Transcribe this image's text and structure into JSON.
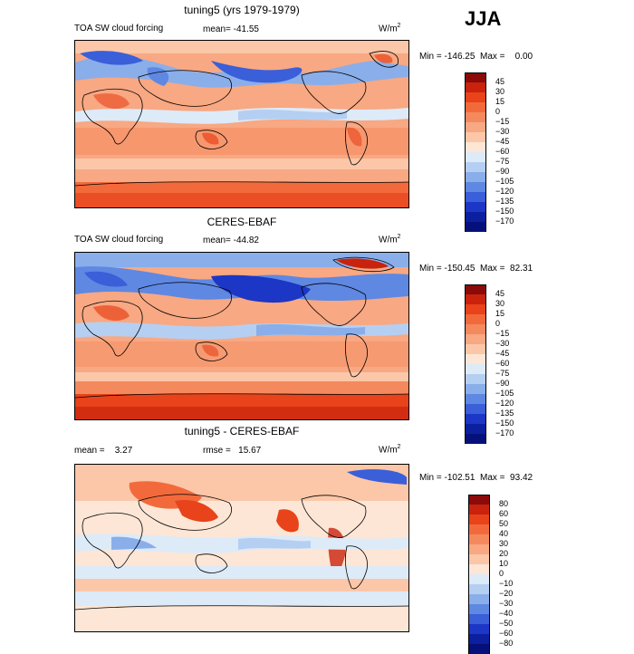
{
  "season": "JJA",
  "panels": [
    {
      "id": "model",
      "title": "tuning5 (yrs 1979-1979)",
      "left_label": "TOA SW cloud forcing",
      "mean_text": "mean= -41.55",
      "units": "W/m",
      "units_exp": "2",
      "minmax": "Min = -146.25  Max =    0.00"
    },
    {
      "id": "obs",
      "title": "CERES-EBAF",
      "left_label": "TOA SW cloud forcing",
      "mean_text": "mean= -44.82",
      "units": "W/m",
      "units_exp": "2",
      "minmax": "Min = -150.45  Max =  82.31"
    },
    {
      "id": "diff",
      "title": "tuning5 - CERES-EBAF",
      "left_label": "mean =    3.27",
      "mean_text": "rmse =   15.67",
      "units": "W/m",
      "units_exp": "2",
      "minmax": "Min = -102.51  Max =  93.42"
    }
  ],
  "colorbars": {
    "forcing": {
      "levels": [
        "45",
        "30",
        "15",
        "0",
        "−15",
        "−30",
        "−45",
        "−60",
        "−75",
        "−90",
        "−105",
        "−120",
        "−135",
        "−150",
        "−170"
      ],
      "colors": [
        "#8b0a0a",
        "#c9230d",
        "#e8431a",
        "#f26a3c",
        "#f5895e",
        "#f8a882",
        "#fbc7a8",
        "#fde6d6",
        "#ddeaf8",
        "#b5cff2",
        "#8aaeea",
        "#5e88e2",
        "#3a5fd9",
        "#1c36c6",
        "#0c1f9e",
        "#06107a"
      ]
    },
    "diff": {
      "levels": [
        "80",
        "60",
        "50",
        "40",
        "30",
        "20",
        "10",
        "0",
        "−10",
        "−20",
        "−30",
        "−40",
        "−50",
        "−60",
        "−80"
      ],
      "colors": [
        "#8b0a0a",
        "#c9230d",
        "#e8431a",
        "#f26a3c",
        "#f5895e",
        "#f8a882",
        "#fbc7a8",
        "#fde6d6",
        "#ddeaf8",
        "#b5cff2",
        "#8aaeea",
        "#5e88e2",
        "#3a5fd9",
        "#1c36c6",
        "#0c1f9e",
        "#06107a"
      ]
    }
  }
}
